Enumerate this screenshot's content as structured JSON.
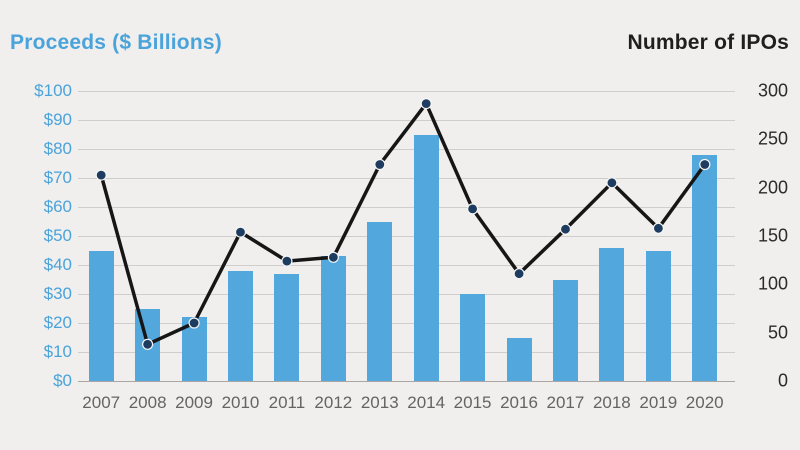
{
  "header": {
    "left_title": "Proceeds ($ Billions)",
    "right_title": "Number of IPOs"
  },
  "colors": {
    "background": "#f0efee",
    "bar": "#52a8dc",
    "title_blue": "#4aa3da",
    "line": "#161616",
    "dot_fill": "#1d3c5f",
    "dot_ring": "#f5f5f5",
    "grid": "#cfcecd",
    "left_axis_text": "#4aa3da",
    "right_axis_text": "#2b2b2b",
    "x_label_text": "#646464"
  },
  "chart_data": {
    "type": "bar",
    "title": "",
    "categories": [
      "2007",
      "2008",
      "2009",
      "2010",
      "2011",
      "2012",
      "2013",
      "2014",
      "2015",
      "2016",
      "2017",
      "2018",
      "2019",
      "2020"
    ],
    "series": [
      {
        "name": "Proceeds ($ Billions)",
        "type": "bar",
        "axis": "left",
        "color": "#52a8dc",
        "values": [
          45,
          25,
          22,
          38,
          37,
          43,
          55,
          85,
          30,
          15,
          35,
          46,
          45,
          78
        ]
      },
      {
        "name": "Number of IPOs",
        "type": "line",
        "axis": "right",
        "color": "#161616",
        "marker_color": "#1d3c5f",
        "values": [
          213,
          38,
          60,
          154,
          124,
          128,
          224,
          287,
          178,
          111,
          157,
          205,
          158,
          224
        ]
      }
    ],
    "left_axis": {
      "title": "Proceeds ($ Billions)",
      "min": 0,
      "max": 100,
      "tick_values": [
        100,
        90,
        80,
        70,
        60,
        50,
        40,
        30,
        20,
        10,
        0
      ],
      "tick_labels": [
        "$100",
        "$90",
        "$80",
        "$70",
        "$60",
        "$50",
        "$40",
        "$30",
        "$20",
        "$10",
        "$0"
      ]
    },
    "right_axis": {
      "title": "Number of IPOs",
      "min": 0,
      "max": 300,
      "tick_values": [
        300,
        250,
        200,
        150,
        100,
        50,
        0
      ],
      "tick_labels": [
        "300",
        "250",
        "200",
        "150",
        "100",
        "50",
        "0"
      ]
    },
    "grid": true,
    "legend_position": "none"
  }
}
